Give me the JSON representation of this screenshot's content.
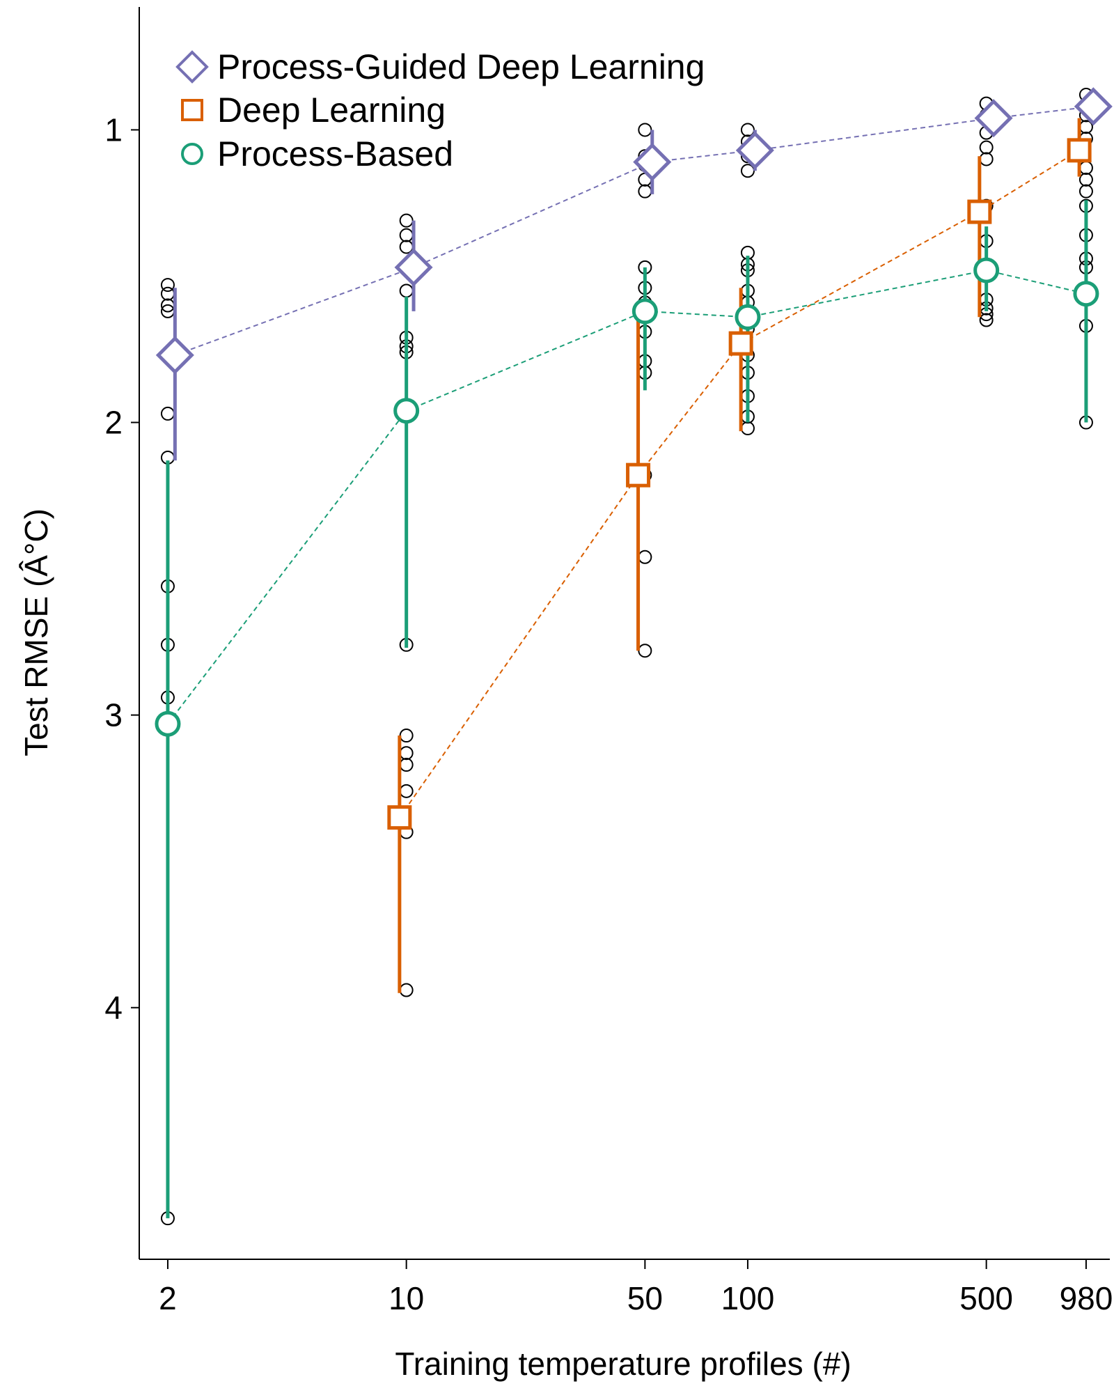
{
  "chart_data": {
    "type": "scatter",
    "xlabel": "Training temperature profiles (#)",
    "ylabel": "Test RMSE (Â°C)",
    "x_scale": "log",
    "y_axis": "reversed",
    "ylim": [
      0.58,
      4.86
    ],
    "xlim": [
      1.65,
      1150
    ],
    "x_ticks": [
      2,
      10,
      50,
      100,
      500,
      980
    ],
    "y_ticks": [
      1,
      2,
      3,
      4
    ],
    "legend_position": "top-left",
    "grid": false,
    "series": [
      {
        "name": "Process-Guided Deep Learning",
        "key": "pgdl",
        "marker": "diamond",
        "color": "#7570b3",
        "x_offset": 1.05,
        "points": [
          {
            "x": 2,
            "mean": 1.77,
            "lo": 1.54,
            "hi": 2.13
          },
          {
            "x": 10,
            "mean": 1.47,
            "lo": 1.31,
            "hi": 1.62
          },
          {
            "x": 50,
            "mean": 1.11,
            "lo": 1.0,
            "hi": 1.22
          },
          {
            "x": 100,
            "mean": 1.07,
            "lo": 1.0,
            "hi": 1.14
          },
          {
            "x": 500,
            "mean": 0.96,
            "lo": 0.93,
            "hi": 1.0
          },
          {
            "x": 980,
            "mean": 0.92,
            "lo": 0.88,
            "hi": 0.96
          }
        ]
      },
      {
        "name": "Deep Learning",
        "key": "dl",
        "marker": "square",
        "color": "#d95f02",
        "x_offset": 0.955,
        "points": [
          {
            "x": 2,
            "mean": null
          },
          {
            "x": 10,
            "mean": 3.35,
            "lo": 3.07,
            "hi": 3.95
          },
          {
            "x": 50,
            "mean": 2.18,
            "lo": 1.62,
            "hi": 2.78
          },
          {
            "x": 100,
            "mean": 1.73,
            "lo": 1.54,
            "hi": 2.03
          },
          {
            "x": 500,
            "mean": 1.28,
            "lo": 1.09,
            "hi": 1.64
          },
          {
            "x": 980,
            "mean": 1.07,
            "lo": 0.96,
            "hi": 1.16
          }
        ]
      },
      {
        "name": "Process-Based",
        "key": "pb",
        "marker": "circle",
        "color": "#1b9e77",
        "x_offset": 1.0,
        "points": [
          {
            "x": 2,
            "mean": 3.03,
            "lo": 2.13,
            "hi": 4.72
          },
          {
            "x": 10,
            "mean": 1.96,
            "lo": 1.57,
            "hi": 2.77
          },
          {
            "x": 50,
            "mean": 1.62,
            "lo": 1.47,
            "hi": 1.89
          },
          {
            "x": 100,
            "mean": 1.64,
            "lo": 1.43,
            "hi": 2.0
          },
          {
            "x": 500,
            "mean": 1.48,
            "lo": 1.33,
            "hi": 1.62
          },
          {
            "x": 980,
            "mean": 1.56,
            "lo": 1.24,
            "hi": 2.0
          }
        ]
      }
    ],
    "individual_runs": [
      {
        "x": 2,
        "values": [
          1.53,
          1.56,
          1.6,
          1.62,
          1.97,
          2.12,
          2.56,
          2.76,
          2.94,
          4.72
        ]
      },
      {
        "x": 10,
        "values": [
          1.31,
          1.36,
          1.4,
          1.55,
          1.71,
          1.74,
          1.76,
          2.76,
          3.07,
          3.13,
          3.17,
          3.26,
          3.4,
          3.94
        ]
      },
      {
        "x": 50,
        "values": [
          1.0,
          1.09,
          1.12,
          1.17,
          1.21,
          1.47,
          1.54,
          1.59,
          1.69,
          1.79,
          1.83,
          2.18,
          2.46,
          2.78
        ]
      },
      {
        "x": 100,
        "values": [
          1.0,
          1.04,
          1.09,
          1.14,
          1.42,
          1.46,
          1.48,
          1.55,
          1.59,
          1.68,
          1.77,
          1.83,
          1.91,
          1.98,
          2.02
        ]
      },
      {
        "x": 500,
        "vals_note": "",
        "values": [
          0.91,
          0.95,
          1.01,
          1.06,
          1.1,
          1.26,
          1.38,
          1.48,
          1.58,
          1.61,
          1.63,
          1.65
        ]
      },
      {
        "x": 980,
        "values": [
          0.88,
          0.92,
          0.95,
          0.99,
          1.03,
          1.13,
          1.17,
          1.21,
          1.26,
          1.36,
          1.44,
          1.47,
          1.67,
          2.0
        ]
      }
    ]
  }
}
